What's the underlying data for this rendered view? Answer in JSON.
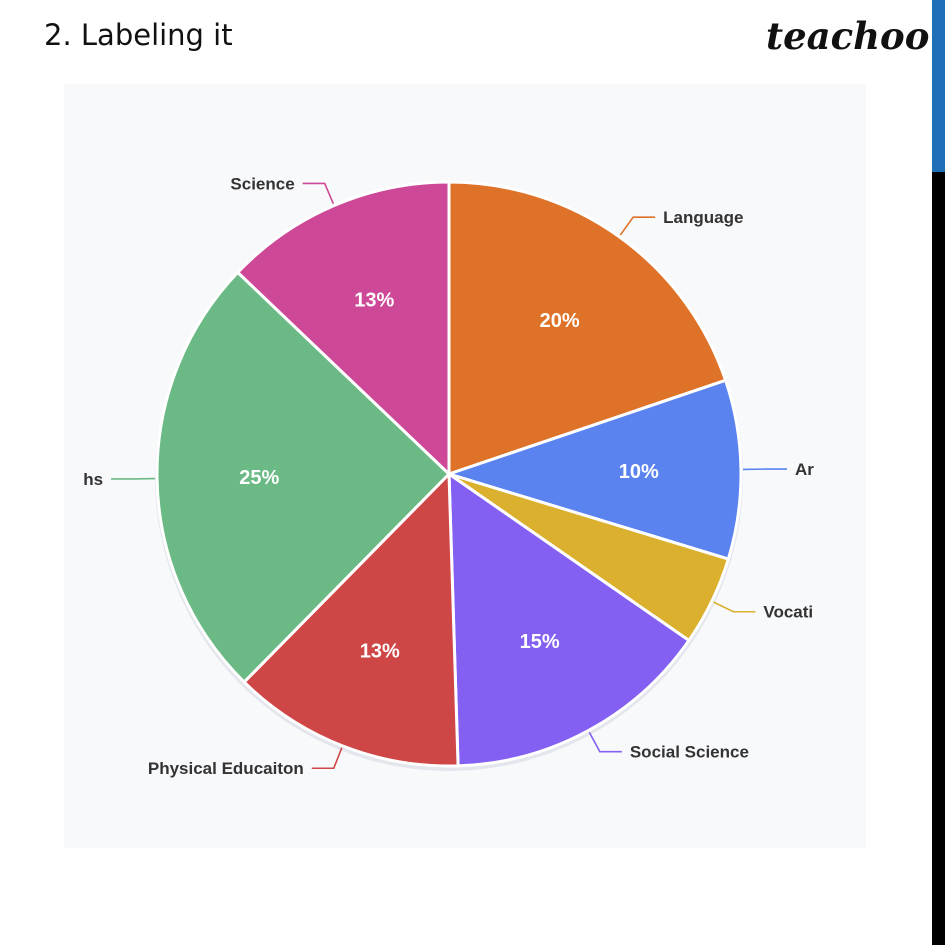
{
  "slide": {
    "title": "2. Labeling it",
    "brand": "teachoo"
  },
  "colors": {
    "accent_bar": "#1f6fb8",
    "slice_colors": [
      "#df7229",
      "#5a83f0",
      "#dbb02e",
      "#8360f2",
      "#cf4646",
      "#6bb984",
      "#cd4897"
    ]
  },
  "chart_data": {
    "type": "pie",
    "title": "",
    "start": "12 o'clock, clockwise",
    "categories": [
      "Language",
      "Ar",
      "Vocati",
      "Social Science",
      "Physical Educaiton",
      "hs",
      "Science"
    ],
    "values": [
      20,
      10,
      5,
      15,
      13,
      25,
      13
    ],
    "value_labels": [
      "20%",
      "10%",
      "",
      "15%",
      "13%",
      "25%",
      "13%"
    ]
  }
}
